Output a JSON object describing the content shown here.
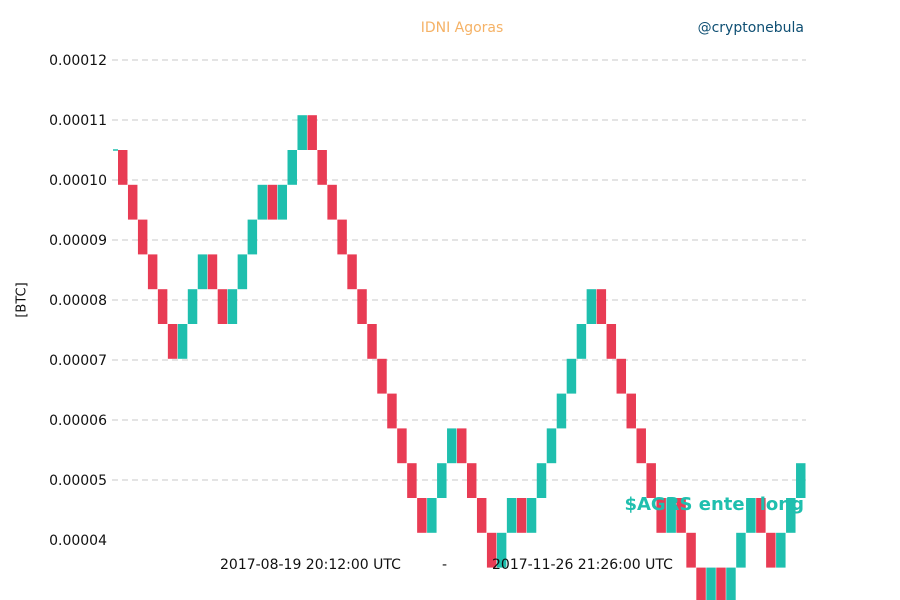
{
  "header": {
    "title": "IDNI Agoras",
    "handle": "@cryptonebula"
  },
  "colors": {
    "up": "#1fbfae",
    "down": "#e83c54",
    "title": "#f5b266",
    "handle": "#0e4f73",
    "annotation": "#1fbfae",
    "grid": "#c8c8c8"
  },
  "footer": {
    "start": "2017-08-19 20:12:00 UTC",
    "separator": "-",
    "end": "2017-11-26 21:26:00 UTC"
  },
  "chart_data": {
    "type": "renko",
    "ylabel": "[BTC]",
    "ylim": [
      4e-05,
      0.00012
    ],
    "yticks": [
      "0.00004",
      "0.00005",
      "0.00006",
      "0.00007",
      "0.00008",
      "0.00009",
      "0.00010",
      "0.00011",
      "0.00012"
    ],
    "grid": true,
    "annotation": "$AGRS enter long",
    "start_price": 0.000105,
    "box_size": 5.8e-06,
    "bricks": [
      "down",
      "down",
      "down",
      "down",
      "down",
      "down",
      "up",
      "up",
      "up",
      "down",
      "down",
      "up",
      "up",
      "up",
      "up",
      "down",
      "up",
      "up",
      "up",
      "down",
      "down",
      "down",
      "down",
      "down",
      "down",
      "down",
      "down",
      "down",
      "down",
      "down",
      "down",
      "up",
      "up",
      "up",
      "down",
      "down",
      "down",
      "down",
      "up",
      "up",
      "down",
      "up",
      "up",
      "up",
      "up",
      "up",
      "up",
      "up",
      "down",
      "down",
      "down",
      "down",
      "down",
      "down",
      "down",
      "up",
      "down",
      "down",
      "down",
      "up",
      "down",
      "up",
      "up",
      "up",
      "down",
      "down",
      "up",
      "up",
      "up"
    ]
  }
}
